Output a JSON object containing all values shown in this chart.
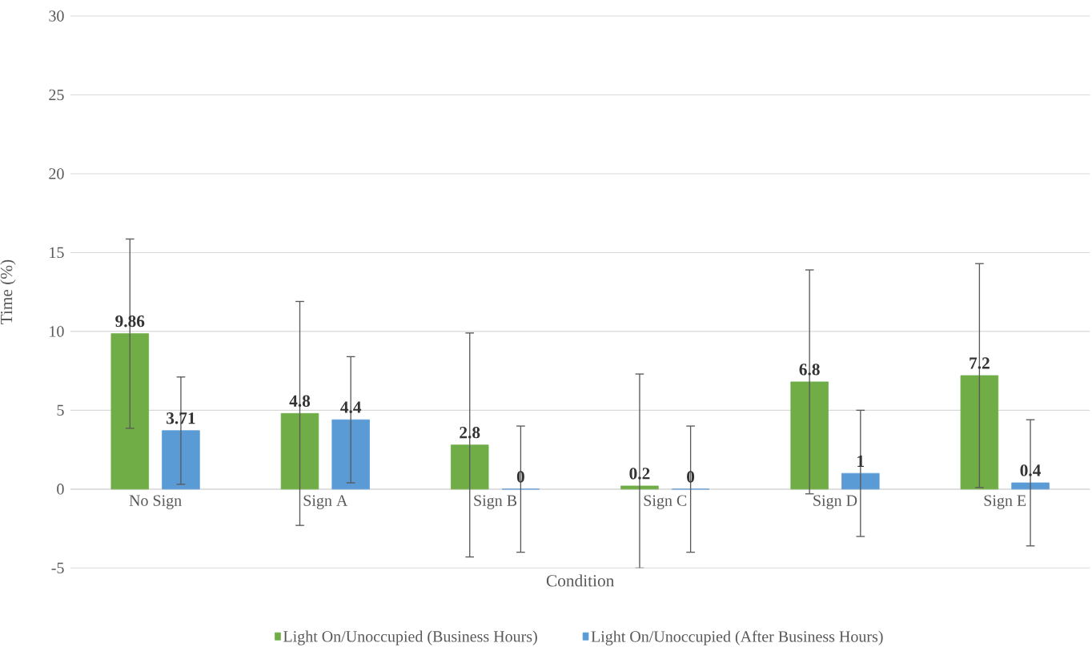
{
  "chart_data": {
    "type": "bar",
    "xlabel": "Condition",
    "ylabel": "Time (%)",
    "categories": [
      "No Sign",
      "Sign A",
      "Sign B",
      "Sign C",
      "Sign D",
      "Sign E"
    ],
    "series": [
      {
        "name": "Light On/Unoccupied (Business Hours)",
        "color": "#70ad47",
        "values": [
          9.86,
          4.8,
          2.8,
          0.2,
          6.8,
          7.2
        ],
        "errors": [
          6.0,
          7.1,
          7.1,
          [
            -5,
            7.3
          ],
          7.1,
          7.1
        ]
      },
      {
        "name": "Light On/Unoccupied (After Business Hours)",
        "color": "#5b9bd5",
        "values": [
          3.71,
          4.4,
          0,
          0,
          1,
          0.4
        ],
        "errors": [
          3.4,
          4.0,
          4.0,
          4.0,
          4.0,
          4.0
        ]
      }
    ],
    "ylim": [
      -5,
      30
    ],
    "yticks": [
      -5,
      0,
      5,
      10,
      15,
      20,
      25,
      30
    ],
    "grid": "y",
    "legend": "bottom",
    "data_labels": true
  }
}
